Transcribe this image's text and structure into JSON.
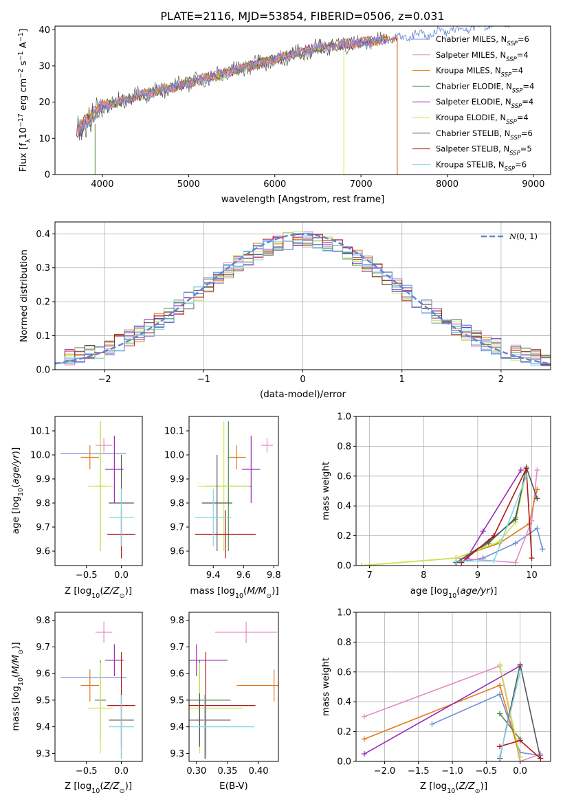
{
  "title": "PLATE=2116, MJD=53854, FIBERID=0506, z=0.031",
  "colors": {
    "C_MILES": "#6f8fd9",
    "S_MILES": "#e68ac5",
    "K_MILES": "#e07b1a",
    "C_ELODIE": "#4f8a4f",
    "S_ELODIE": "#9a2ab8",
    "K_ELODIE": "#c9e84a",
    "C_STELIB": "#555555",
    "S_STELIB": "#b01818",
    "K_STELIB": "#7fd8e3",
    "grid": "#b0b0b0",
    "normal_curve": "#5b86d6"
  },
  "panels": {
    "spectrum": {
      "xlabel": "wavelength [Angstrom, rest frame]",
      "ylabel": "Flux [f_λ 10^-17 erg cm^-2 s^-1 A^-1]",
      "xlim": [
        3450,
        9200
      ],
      "ylim": [
        0,
        41
      ],
      "xticks": [
        4000,
        5000,
        6000,
        7000,
        8000,
        9000
      ],
      "yticks": [
        0,
        10,
        20,
        30,
        40
      ],
      "legend": [
        {
          "key": "C_MILES",
          "name": "Chabrier MILES",
          "nssp": "6"
        },
        {
          "key": "S_MILES",
          "name": "Salpeter MILES",
          "nssp": "4"
        },
        {
          "key": "K_MILES",
          "name": "Kroupa MILES",
          "nssp": "4"
        },
        {
          "key": "C_ELODIE",
          "name": "Chabrier ELODIE",
          "nssp": "4"
        },
        {
          "key": "S_ELODIE",
          "name": "Salpeter ELODIE",
          "nssp": "4"
        },
        {
          "key": "K_ELODIE",
          "name": "Kroupa ELODIE",
          "nssp": "4"
        },
        {
          "key": "C_STELIB",
          "name": "Chabrier STELIB",
          "nssp": "6"
        },
        {
          "key": "S_STELIB",
          "name": "Salpeter STELIB",
          "nssp": "5"
        },
        {
          "key": "K_STELIB",
          "name": "Kroupa STELIB",
          "nssp": "6"
        }
      ]
    },
    "residuals": {
      "xlabel": "(data-model)/error",
      "ylabel": "Normed distribution",
      "xlim": [
        -2.5,
        2.5
      ],
      "ylim": [
        0,
        0.435
      ],
      "xticks": [
        -2,
        -1,
        0,
        1,
        2
      ],
      "yticks": [
        0.0,
        0.1,
        0.2,
        0.3,
        0.4
      ],
      "legend": "N(0,1)"
    },
    "age_vs_Z": {
      "xlabel": "Z [log10(Z/Z⊙)]",
      "ylabel": "age [log10(age/yr)]",
      "xlim": [
        -0.95,
        0.3
      ],
      "ylim": [
        9.54,
        10.16
      ],
      "xticks": [
        -0.5,
        0.0
      ],
      "yticks": [
        9.6,
        9.7,
        9.8,
        9.9,
        10.0,
        10.1
      ]
    },
    "age_vs_mass": {
      "xlabel": "mass [log10(M/M⊙)]",
      "xlim": [
        9.24,
        9.83
      ],
      "ylim": [
        9.54,
        10.16
      ],
      "xticks": [
        9.4,
        9.6,
        9.8
      ],
      "yticks": [
        9.6,
        9.7,
        9.8,
        9.9,
        10.0,
        10.1
      ]
    },
    "weight_vs_age": {
      "xlabel": "age [log10(age/yr)]",
      "ylabel": "mass weight",
      "xlim": [
        6.75,
        10.35
      ],
      "ylim": [
        0,
        1.0
      ],
      "xticks": [
        7,
        8,
        9,
        10
      ],
      "yticks": [
        0.0,
        0.2,
        0.4,
        0.6,
        0.8,
        1.0
      ]
    },
    "mass_vs_Z": {
      "xlabel": "Z [log10(Z/Z⊙)]",
      "ylabel": "mass [log10(M/M⊙)]",
      "xlim": [
        -0.95,
        0.3
      ],
      "ylim": [
        9.27,
        9.83
      ],
      "xticks": [
        -0.5,
        0.0
      ],
      "yticks": [
        9.3,
        9.4,
        9.5,
        9.6,
        9.7,
        9.8
      ]
    },
    "mass_vs_ebv": {
      "xlabel": "E(B-V)",
      "xlim": [
        0.288,
        0.432
      ],
      "ylim": [
        9.27,
        9.83
      ],
      "xticks": [
        0.3,
        0.35,
        0.4
      ],
      "yticks": [
        9.3,
        9.4,
        9.5,
        9.6,
        9.7,
        9.8
      ]
    },
    "weight_vs_Z": {
      "xlabel": "Z [log10(Z/Z⊙)]",
      "ylabel": "mass weight",
      "xlim": [
        -2.42,
        0.45
      ],
      "ylim": [
        0,
        1.0
      ],
      "xticks": [
        -2.0,
        -1.5,
        -1.0,
        -0.5,
        0.0
      ],
      "yticks": [
        0.0,
        0.2,
        0.4,
        0.6,
        0.8,
        1.0
      ]
    }
  },
  "chart_data": {
    "type": "line",
    "models": [
      {
        "key": "C_MILES",
        "Z": -0.4,
        "Zerr": 0.47,
        "age": 10.005,
        "ageerr": 0.0,
        "mass": 9.585,
        "masserr": 0.0,
        "ebv": 0.295,
        "ebverr": 0.0
      },
      {
        "key": "S_MILES",
        "Z": -0.25,
        "Zerr": 0.12,
        "age": 10.04,
        "ageerr": 0.03,
        "mass": 9.755,
        "masserr": 0.04,
        "ebv": 0.38,
        "ebverr": 0.05
      },
      {
        "key": "K_MILES",
        "Z": -0.45,
        "Zerr": 0.13,
        "age": 9.99,
        "ageerr": 0.05,
        "mass": 9.555,
        "masserr": 0.06,
        "ebv": 0.425,
        "ebverr": 0.06
      },
      {
        "key": "C_ELODIE",
        "Z": -0.3,
        "Zerr": 0.08,
        "age": 9.87,
        "ageerr": 0.27,
        "mass": 9.5,
        "masserr": 0.15,
        "ebv": 0.305,
        "ebverr": 0.05
      },
      {
        "key": "S_ELODIE",
        "Z": -0.1,
        "Zerr": 0.13,
        "age": 9.94,
        "ageerr": 0.14,
        "mass": 9.65,
        "masserr": 0.06,
        "ebv": 0.3,
        "ebverr": 0.05
      },
      {
        "key": "K_ELODIE",
        "Z": -0.3,
        "Zerr": 0.18,
        "age": 9.87,
        "ageerr": 0.27,
        "mass": 9.47,
        "masserr": 0.17,
        "ebv": 0.305,
        "ebverr": 0.07
      },
      {
        "key": "C_STELIB",
        "Z": 0.0,
        "Zerr": 0.18,
        "age": 9.8,
        "ageerr": 0.2,
        "mass": 9.425,
        "masserr": 0.1,
        "ebv": 0.305,
        "ebverr": 0.05
      },
      {
        "key": "S_STELIB",
        "Z": 0.0,
        "Zerr": 0.2,
        "age": 9.67,
        "ageerr": 0.1,
        "mass": 9.48,
        "masserr": 0.2,
        "ebv": 0.315,
        "ebverr": 0.08
      },
      {
        "key": "K_STELIB",
        "Z": 0.0,
        "Zerr": 0.18,
        "age": 9.74,
        "ageerr": 0.12,
        "mass": 9.4,
        "masserr": 0.12,
        "ebv": 0.313,
        "ebverr": 0.08
      }
    ],
    "weights_vs_age": [
      {
        "key": "C_MILES",
        "ages": [
          8.6,
          9.1,
          9.7,
          10.1,
          10.2
        ],
        "weights": [
          0.02,
          0.05,
          0.15,
          0.25,
          0.11
        ]
      },
      {
        "key": "S_MILES",
        "ages": [
          8.6,
          9.7,
          10.0,
          10.1
        ],
        "weights": [
          0.05,
          0.02,
          0.3,
          0.64
        ]
      },
      {
        "key": "K_MILES",
        "ages": [
          6.85,
          8.6,
          9.4,
          9.95,
          10.1
        ],
        "weights": [
          0.0,
          0.05,
          0.15,
          0.28,
          0.51
        ]
      },
      {
        "key": "C_ELODIE",
        "ages": [
          8.6,
          9.2,
          9.7,
          9.9
        ],
        "weights": [
          0.02,
          0.15,
          0.32,
          0.65
        ]
      },
      {
        "key": "S_ELODIE",
        "ages": [
          8.8,
          9.1,
          9.8
        ],
        "weights": [
          0.05,
          0.23,
          0.64
        ]
      },
      {
        "key": "K_ELODIE",
        "ages": [
          6.85,
          8.6,
          9.4,
          9.7,
          9.9
        ],
        "weights": [
          0.0,
          0.05,
          0.16,
          0.29,
          0.63
        ]
      },
      {
        "key": "C_STELIB",
        "ages": [
          8.6,
          9.2,
          9.7,
          9.9,
          10.1
        ],
        "weights": [
          0.02,
          0.16,
          0.31,
          0.66,
          0.45
        ]
      },
      {
        "key": "S_STELIB",
        "ages": [
          8.7,
          9.3,
          9.9,
          10.0
        ],
        "weights": [
          0.02,
          0.2,
          0.65,
          0.05
        ]
      },
      {
        "key": "K_STELIB",
        "ages": [
          8.6,
          9.3,
          9.9
        ],
        "weights": [
          0.03,
          0.03,
          0.6
        ]
      }
    ],
    "weights_vs_Z": [
      {
        "key": "C_MILES",
        "Z": [
          -1.3,
          -0.3,
          0.0,
          0.3
        ],
        "weights": [
          0.25,
          0.45,
          0.06,
          0.04
        ]
      },
      {
        "key": "S_MILES",
        "Z": [
          -2.3,
          -0.3,
          0.0,
          0.3
        ],
        "weights": [
          0.3,
          0.64,
          0.0,
          0.05
        ]
      },
      {
        "key": "K_MILES",
        "Z": [
          -2.3,
          -0.3,
          0.0
        ],
        "weights": [
          0.15,
          0.51,
          0.03
        ]
      },
      {
        "key": "C_ELODIE",
        "Z": [
          -0.3,
          0.0
        ],
        "weights": [
          0.32,
          0.15
        ]
      },
      {
        "key": "S_ELODIE",
        "Z": [
          -2.3,
          0.0
        ],
        "weights": [
          0.05,
          0.64
        ]
      },
      {
        "key": "K_ELODIE",
        "Z": [
          -0.3,
          0.0
        ],
        "weights": [
          0.65,
          0.03
        ]
      },
      {
        "key": "C_STELIB",
        "Z": [
          -0.3,
          0.0,
          0.3
        ],
        "weights": [
          0.02,
          0.65,
          0.02
        ]
      },
      {
        "key": "S_STELIB",
        "Z": [
          -0.3,
          0.0,
          0.3
        ],
        "weights": [
          0.1,
          0.14,
          0.02
        ]
      },
      {
        "key": "K_STELIB",
        "Z": [
          -0.3,
          0.0
        ],
        "weights": [
          0.03,
          0.6
        ]
      }
    ]
  }
}
